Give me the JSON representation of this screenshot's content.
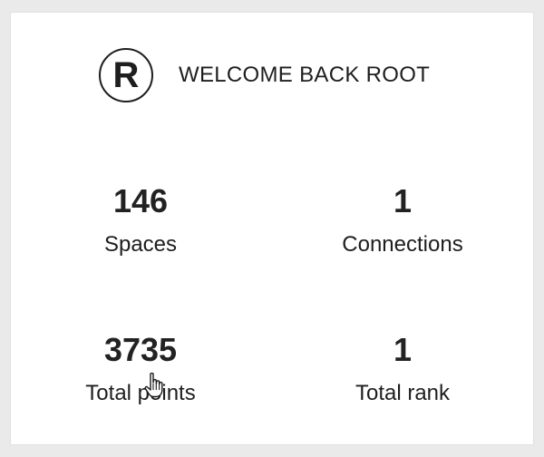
{
  "header": {
    "avatar_letter": "R",
    "welcome_text": "WELCOME BACK ROOT"
  },
  "stats": {
    "spaces": {
      "value": "146",
      "label": "Spaces"
    },
    "connections": {
      "value": "1",
      "label": "Connections"
    },
    "total_points": {
      "value": "3735",
      "label": "Total points"
    },
    "total_rank": {
      "value": "1",
      "label": "Total rank"
    }
  },
  "icons": {
    "cursor": "hand-pointer-icon"
  },
  "colors": {
    "page_background": "#eaeaea",
    "card_background": "#ffffff",
    "text": "#1e1e1e"
  }
}
